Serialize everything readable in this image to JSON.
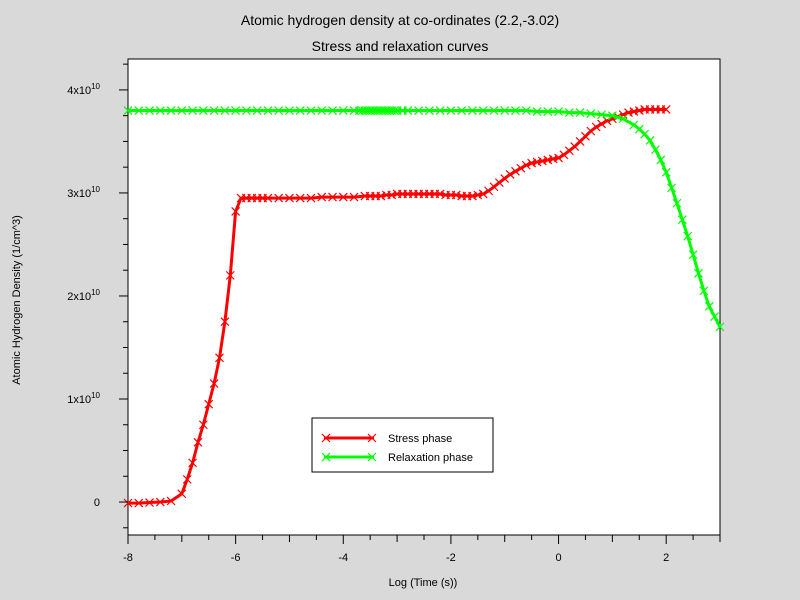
{
  "chart_data": {
    "type": "line",
    "title": "Atomic hydrogen density  at co-ordinates (2.2,-3.02)",
    "subtitle": "Stress and relaxation curves",
    "xlabel": "Log (Time (s))",
    "ylabel": "Atomic Hydrogen Density (1/cm^3)",
    "xlim": [
      -8,
      3
    ],
    "ylim": [
      -3200000000.0,
      43000000000.0
    ],
    "x_ticks": [
      -8,
      -6,
      -4,
      -2,
      0,
      2
    ],
    "y_ticks": [
      {
        "value": 0,
        "mant": "0",
        "exp": ""
      },
      {
        "value": 10000000000.0,
        "mant": "1x10",
        "exp": "10"
      },
      {
        "value": 20000000000.0,
        "mant": "2x10",
        "exp": "10"
      },
      {
        "value": 30000000000.0,
        "mant": "3x10",
        "exp": "10"
      },
      {
        "value": 40000000000.0,
        "mant": "4x10",
        "exp": "10"
      }
    ],
    "legend_position": "bottom-center",
    "series": [
      {
        "name": "Stress phase",
        "color": "#ff0000",
        "marker": "x",
        "x": [
          -8,
          -7.8,
          -7.6,
          -7.4,
          -7.2,
          -7.0,
          -6.9,
          -6.8,
          -6.7,
          -6.6,
          -6.5,
          -6.4,
          -6.3,
          -6.2,
          -6.1,
          -6.0,
          -5.9,
          -5.8,
          -5.7,
          -5.6,
          -5.5,
          -5.4,
          -5.2,
          -5.0,
          -4.8,
          -4.6,
          -4.4,
          -4.2,
          -4.0,
          -3.8,
          -3.6,
          -3.5,
          -3.4,
          -3.3,
          -3.2,
          -3.1,
          -3.0,
          -2.9,
          -2.8,
          -2.7,
          -2.6,
          -2.5,
          -2.4,
          -2.3,
          -2.2,
          -2.1,
          -2.0,
          -1.9,
          -1.8,
          -1.7,
          -1.6,
          -1.5,
          -1.4,
          -1.3,
          -1.2,
          -1.1,
          -1.0,
          -0.9,
          -0.8,
          -0.7,
          -0.6,
          -0.5,
          -0.4,
          -0.3,
          -0.2,
          -0.1,
          0.0,
          0.1,
          0.2,
          0.3,
          0.4,
          0.5,
          0.6,
          0.7,
          0.8,
          0.9,
          1.0,
          1.1,
          1.2,
          1.3,
          1.4,
          1.5,
          1.6,
          1.7,
          1.8,
          1.9,
          2.0
        ],
        "y": [
          -100000000.0,
          -100000000.0,
          -50000000.0,
          0,
          100000000.0,
          800000000.0,
          2200000000.0,
          3800000000.0,
          5800000000.0,
          7500000000.0,
          9500000000.0,
          11500000000.0,
          14000000000.0,
          17500000000.0,
          22000000000.0,
          28200000000.0,
          29500000000.0,
          29500000000.0,
          29500000000.0,
          29500000000.0,
          29500000000.0,
          29500000000.0,
          29500000000.0,
          29500000000.0,
          29500000000.0,
          29500000000.0,
          29600000000.0,
          29600000000.0,
          29600000000.0,
          29600000000.0,
          29700000000.0,
          29700000000.0,
          29700000000.0,
          29700000000.0,
          29800000000.0,
          29800000000.0,
          29900000000.0,
          29900000000.0,
          29900000000.0,
          29900000000.0,
          29900000000.0,
          29900000000.0,
          29900000000.0,
          29900000000.0,
          29900000000.0,
          29800000000.0,
          29800000000.0,
          29800000000.0,
          29700000000.0,
          29700000000.0,
          29700000000.0,
          29800000000.0,
          29900000000.0,
          30200000000.0,
          30600000000.0,
          31000000000.0,
          31400000000.0,
          31800000000.0,
          32100000000.0,
          32400000000.0,
          32700000000.0,
          32900000000.0,
          33000000000.0,
          33100000000.0,
          33200000000.0,
          33300000000.0,
          33400000000.0,
          33700000000.0,
          34100000000.0,
          34500000000.0,
          35000000000.0,
          35500000000.0,
          36000000000.0,
          36400000000.0,
          36700000000.0,
          37000000000.0,
          37200000000.0,
          37400000000.0,
          37600000000.0,
          37800000000.0,
          37900000000.0,
          38000000000.0,
          38100000000.0,
          38100000000.0,
          38100000000.0,
          38100000000.0,
          38100000000.0
        ]
      },
      {
        "name": "Relaxation phase",
        "color": "#00ff00",
        "marker": "x",
        "x": [
          -8,
          -7.8,
          -7.6,
          -7.4,
          -7.2,
          -7.0,
          -6.8,
          -6.6,
          -6.4,
          -6.2,
          -6.0,
          -5.8,
          -5.6,
          -5.4,
          -5.2,
          -5.0,
          -4.8,
          -4.6,
          -4.4,
          -4.2,
          -4.0,
          -3.8,
          -3.7,
          -3.65,
          -3.6,
          -3.55,
          -3.5,
          -3.45,
          -3.4,
          -3.35,
          -3.3,
          -3.25,
          -3.2,
          -3.15,
          -3.1,
          -3.05,
          -3.0,
          -2.9,
          -2.8,
          -2.6,
          -2.4,
          -2.2,
          -2.0,
          -1.8,
          -1.6,
          -1.4,
          -1.2,
          -1.0,
          -0.8,
          -0.6,
          -0.4,
          -0.2,
          0.0,
          0.2,
          0.4,
          0.6,
          0.8,
          1.0,
          1.2,
          1.4,
          1.5,
          1.6,
          1.7,
          1.8,
          1.9,
          2.0,
          2.1,
          2.2,
          2.3,
          2.4,
          2.5,
          2.6,
          2.7,
          2.8,
          2.9,
          3.0
        ],
        "y": [
          38000000000.0,
          38000000000.0,
          38000000000.0,
          38000000000.0,
          38000000000.0,
          38000000000.0,
          38000000000.0,
          38000000000.0,
          38000000000.0,
          38000000000.0,
          38000000000.0,
          38000000000.0,
          38000000000.0,
          38000000000.0,
          38000000000.0,
          38000000000.0,
          38000000000.0,
          38000000000.0,
          38000000000.0,
          38000000000.0,
          38000000000.0,
          38000000000.0,
          38000000000.0,
          38000000000.0,
          38000000000.0,
          38000000000.0,
          38000000000.0,
          38000000000.0,
          38000000000.0,
          38000000000.0,
          38000000000.0,
          38000000000.0,
          38000000000.0,
          38000000000.0,
          38000000000.0,
          38000000000.0,
          38000000000.0,
          38000000000.0,
          38000000000.0,
          38000000000.0,
          38000000000.0,
          38000000000.0,
          38000000000.0,
          38000000000.0,
          38000000000.0,
          38000000000.0,
          38000000000.0,
          38000000000.0,
          38000000000.0,
          38000000000.0,
          37900000000.0,
          37900000000.0,
          37900000000.0,
          37800000000.0,
          37800000000.0,
          37700000000.0,
          37600000000.0,
          37500000000.0,
          37200000000.0,
          36600000000.0,
          36200000000.0,
          35700000000.0,
          35100000000.0,
          34200000000.0,
          33200000000.0,
          32000000000.0,
          30500000000.0,
          29000000000.0,
          27400000000.0,
          25800000000.0,
          24000000000.0,
          22200000000.0,
          20500000000.0,
          19000000000.0,
          18000000000.0,
          17000000000.0
        ]
      }
    ]
  }
}
